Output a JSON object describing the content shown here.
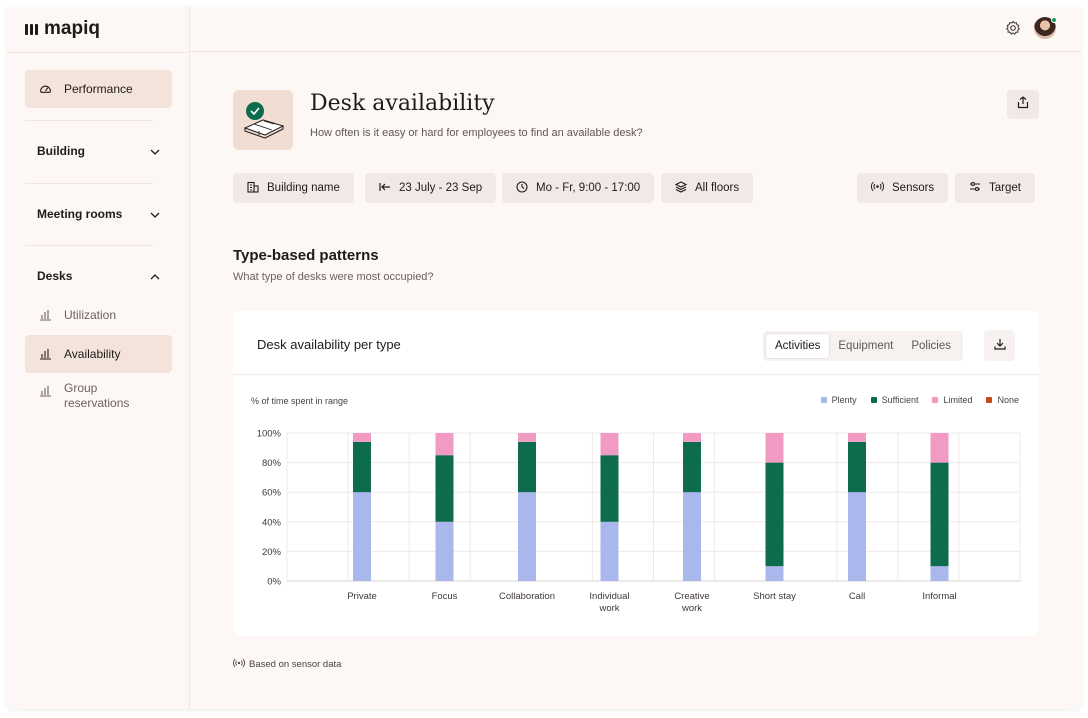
{
  "app": {
    "logo_text": "mapiq"
  },
  "sidebar": {
    "performance": "Performance",
    "sections": [
      {
        "label": "Building",
        "state": "collapsed"
      },
      {
        "label": "Meeting rooms",
        "state": "collapsed"
      },
      {
        "label": "Desks",
        "state": "expanded"
      }
    ],
    "desk_items": [
      {
        "label": "Utilization"
      },
      {
        "label": "Availability",
        "active": true
      },
      {
        "label_line1": "Group",
        "label_line2": "reservations"
      }
    ]
  },
  "header": {
    "title": "Desk availability",
    "subtitle": "How often is it easy or hard for employees to find an available desk?"
  },
  "filters": {
    "building": "Building name",
    "date_range": "23 July - 23 Sep",
    "time": "Mo - Fr, 9:00 - 17:00",
    "floors": "All floors",
    "sensors": "Sensors",
    "target": "Target"
  },
  "section": {
    "title": "Type-based patterns",
    "subtitle": "What type of desks were most occupied?"
  },
  "card": {
    "title": "Desk availability per type",
    "tabs": [
      "Activities",
      "Equipment",
      "Policies"
    ],
    "active_tab": "Activities",
    "y_axis_note": "% of time spent in range"
  },
  "chart_data": {
    "type": "bar",
    "stacked": true,
    "categories": [
      "Private",
      "Focus",
      "Collaboration",
      "Individual work",
      "Creative work",
      "Short stay",
      "Call",
      "Informal"
    ],
    "category_lines": [
      [
        "Private"
      ],
      [
        "Focus"
      ],
      [
        "Collaboration"
      ],
      [
        "Individual",
        "work"
      ],
      [
        "Creative",
        "work"
      ],
      [
        "Short stay"
      ],
      [
        "Call"
      ],
      [
        "Informal"
      ]
    ],
    "series": [
      {
        "name": "Plenty",
        "color": "#a9b7ec",
        "values": [
          60,
          40,
          60,
          40,
          60,
          10,
          60,
          10
        ]
      },
      {
        "name": "Sufficient",
        "color": "#0d6b4e",
        "values": [
          34,
          45,
          34,
          45,
          34,
          70,
          34,
          70
        ]
      },
      {
        "name": "Limited",
        "color": "#f09ac4",
        "values": [
          6,
          15,
          6,
          15,
          6,
          20,
          6,
          20
        ]
      },
      {
        "name": "None",
        "color": "#c8471f",
        "values": [
          0,
          0,
          0,
          0,
          0,
          0,
          0,
          0
        ]
      }
    ],
    "y_ticks": [
      "0%",
      "20%",
      "40%",
      "60%",
      "80%",
      "100%"
    ],
    "ylim": [
      0,
      100
    ],
    "grid": true,
    "legend_position": "top-right"
  },
  "footnote": "Based on sensor data"
}
